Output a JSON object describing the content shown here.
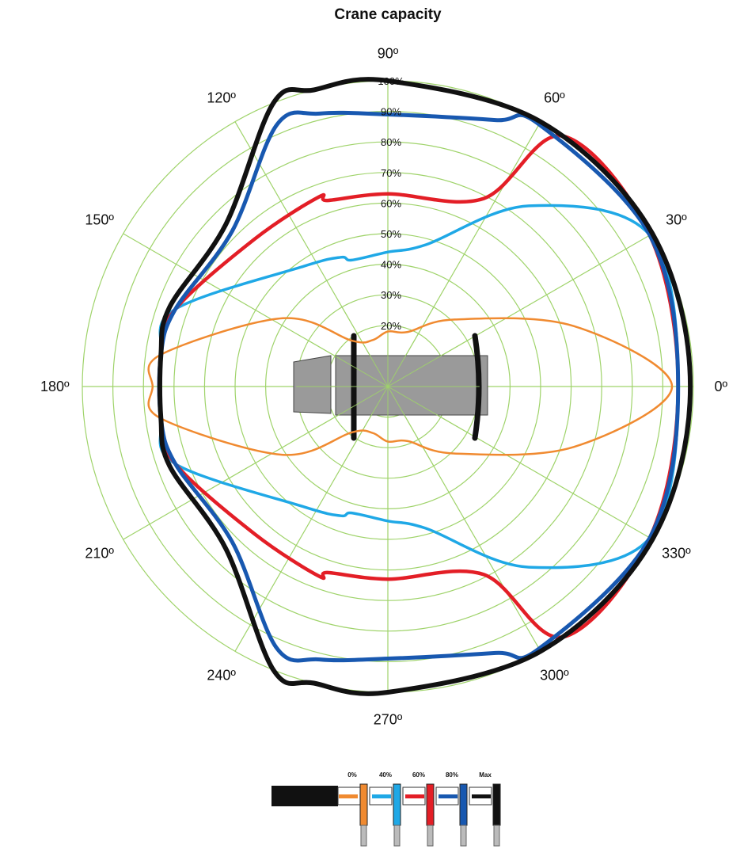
{
  "chart_data": {
    "type": "polar-area",
    "title": "Crane capacity",
    "angular_axis": {
      "unit": "degrees",
      "ticks": [
        0,
        30,
        60,
        90,
        120,
        150,
        180,
        210,
        240,
        270,
        300,
        330
      ],
      "tick_labels": [
        "0º",
        "30º",
        "60º",
        "90º",
        "120º",
        "150º",
        "180º",
        "210º",
        "240º",
        "270º",
        "300º",
        "330º"
      ]
    },
    "radial_axis": {
      "range": [
        0,
        100
      ],
      "rings": [
        10,
        20,
        30,
        40,
        50,
        60,
        70,
        80,
        90,
        100
      ],
      "ring_labels": [
        "20%",
        "30%",
        "40%",
        "50%",
        "60%",
        "70%",
        "80%",
        "90%",
        "100%"
      ],
      "label_values": [
        20,
        30,
        40,
        50,
        60,
        70,
        80,
        90,
        100
      ],
      "grid": true
    },
    "spokes_every_deg": 30,
    "series": [
      {
        "name": "0%",
        "color": "#f08a30",
        "width": 2.5,
        "points": [
          [
            0,
            93
          ],
          [
            18,
            64
          ],
          [
            45,
            31
          ],
          [
            70,
            19
          ],
          [
            90,
            18
          ],
          [
            108,
            16
          ],
          [
            128,
            19
          ],
          [
            147,
            41
          ],
          [
            172,
            75
          ],
          [
            180,
            77
          ],
          [
            188,
            75
          ],
          [
            213,
            41
          ],
          [
            232,
            19
          ],
          [
            252,
            16
          ],
          [
            270,
            18
          ],
          [
            290,
            19
          ],
          [
            315,
            31
          ],
          [
            342,
            64
          ]
        ]
      },
      {
        "name": "40%",
        "color": "#1fa8e6",
        "width": 3.5,
        "points": [
          [
            0,
            95
          ],
          [
            30,
            99
          ],
          [
            52,
            75
          ],
          [
            75,
            48
          ],
          [
            90,
            44
          ],
          [
            106,
            43
          ],
          [
            110,
            45
          ],
          [
            125,
            48
          ],
          [
            160,
            74
          ],
          [
            172,
            75
          ],
          [
            188,
            75
          ],
          [
            200,
            74
          ],
          [
            235,
            48
          ],
          [
            250,
            45
          ],
          [
            254,
            43
          ],
          [
            270,
            44
          ],
          [
            285,
            48
          ],
          [
            308,
            75
          ],
          [
            330,
            99
          ]
        ]
      },
      {
        "name": "60%",
        "color": "#e31e26",
        "width": 4.5,
        "points": [
          [
            0,
            95
          ],
          [
            30,
            99
          ],
          [
            55,
            100
          ],
          [
            63,
            69
          ],
          [
            90,
            63
          ],
          [
            108,
            64
          ],
          [
            110,
            66
          ],
          [
            132,
            65
          ],
          [
            160,
            74
          ],
          [
            172,
            75
          ],
          [
            188,
            75
          ],
          [
            200,
            74
          ],
          [
            228,
            65
          ],
          [
            250,
            66
          ],
          [
            252,
            64
          ],
          [
            270,
            63
          ],
          [
            297,
            69
          ],
          [
            305,
            100
          ],
          [
            330,
            99
          ]
        ]
      },
      {
        "name": "80%",
        "color": "#1858b0",
        "width": 5,
        "points": [
          [
            0,
            95
          ],
          [
            30,
            99
          ],
          [
            60,
            99
          ],
          [
            68,
            94
          ],
          [
            90,
            89
          ],
          [
            104,
            92
          ],
          [
            113,
            93
          ],
          [
            135,
            72
          ],
          [
            160,
            74
          ],
          [
            172,
            75
          ],
          [
            188,
            75
          ],
          [
            200,
            74
          ],
          [
            225,
            72
          ],
          [
            247,
            93
          ],
          [
            256,
            92
          ],
          [
            270,
            89
          ],
          [
            292,
            94
          ],
          [
            300,
            99
          ],
          [
            330,
            99
          ]
        ]
      },
      {
        "name": "Max",
        "color": "#111111",
        "width": 6,
        "points": [
          [
            0,
            99
          ],
          [
            30,
            100
          ],
          [
            60,
            100
          ],
          [
            90,
            100
          ],
          [
            104,
            100
          ],
          [
            112,
            100
          ],
          [
            135,
            75
          ],
          [
            160,
            76
          ],
          [
            172,
            75
          ],
          [
            188,
            75
          ],
          [
            200,
            76
          ],
          [
            225,
            75
          ],
          [
            248,
            100
          ],
          [
            256,
            100
          ],
          [
            270,
            100
          ],
          [
            300,
            100
          ],
          [
            330,
            100
          ]
        ]
      }
    ],
    "legend": {
      "placement": "bottom-center",
      "entries": [
        {
          "label": "0%",
          "color": "#f08a30"
        },
        {
          "label": "40%",
          "color": "#1fa8e6"
        },
        {
          "label": "60%",
          "color": "#e31e26"
        },
        {
          "label": "80%",
          "color": "#1858b0"
        },
        {
          "label": "Max",
          "color": "#111111"
        }
      ]
    },
    "colors": {
      "grid": "#9fd36a",
      "crane_body": "#9a9a9a",
      "outrigger": "#111111"
    }
  }
}
